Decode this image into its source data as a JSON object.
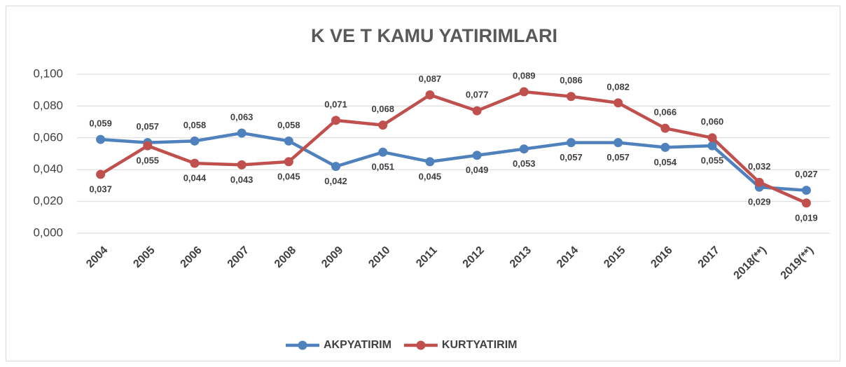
{
  "chart_data": {
    "type": "line",
    "title": "K VE T KAMU YATIRIMLARI",
    "categories": [
      "2004",
      "2005",
      "2006",
      "2007",
      "2008",
      "2009",
      "2010",
      "2011",
      "2012",
      "2013",
      "2014",
      "2015",
      "2016",
      "2017",
      "2018(**)",
      "2019(**)"
    ],
    "series": [
      {
        "name": "AKPYATIRIM",
        "color": "#4f81bd",
        "values": [
          0.059,
          0.057,
          0.058,
          0.063,
          0.058,
          0.042,
          0.051,
          0.045,
          0.049,
          0.053,
          0.057,
          0.057,
          0.054,
          0.055,
          0.029,
          0.027
        ],
        "value_labels": [
          "0,059",
          "0,057",
          "0,058",
          "0,063",
          "0,058",
          "0,042",
          "0,051",
          "0,045",
          "0,049",
          "0,053",
          "0,057",
          "0,057",
          "0,054",
          "0,055",
          "0,029",
          "0,027"
        ]
      },
      {
        "name": "KURTYATIRIM",
        "color": "#c0504d",
        "values": [
          0.037,
          0.055,
          0.044,
          0.043,
          0.045,
          0.071,
          0.068,
          0.087,
          0.077,
          0.089,
          0.086,
          0.082,
          0.066,
          0.06,
          0.032,
          0.019
        ],
        "value_labels": [
          "0,037",
          "0,055",
          "0,044",
          "0,043",
          "0,045",
          "0,071",
          "0,068",
          "0,087",
          "0,077",
          "0,089",
          "0,086",
          "0,082",
          "0,066",
          "0,060",
          "0,032",
          "0,019"
        ]
      }
    ],
    "ylim": [
      0,
      0.1
    ],
    "yticks": [
      {
        "value": 0,
        "label": "0,000"
      },
      {
        "value": 0.02,
        "label": "0,020"
      },
      {
        "value": 0.04,
        "label": "0,040"
      },
      {
        "value": 0.06,
        "label": "0,060"
      },
      {
        "value": 0.08,
        "label": "0,080"
      },
      {
        "value": 0.1,
        "label": "0,100"
      }
    ],
    "grid": true,
    "legend": "bottom"
  }
}
